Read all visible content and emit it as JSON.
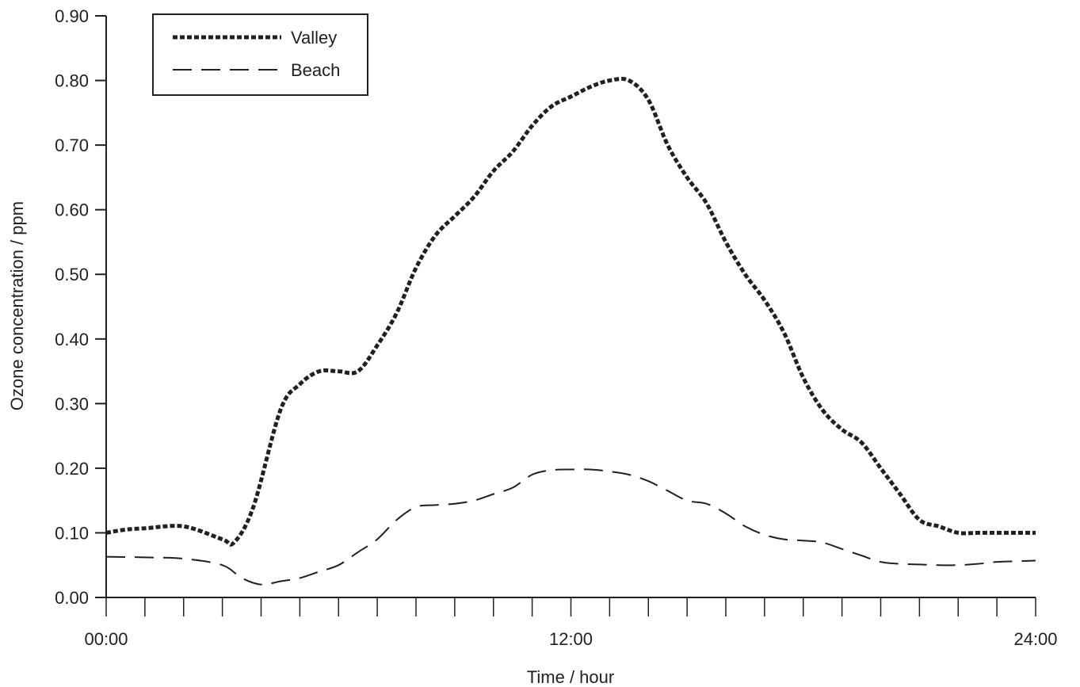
{
  "chart_data": {
    "type": "line",
    "title": "",
    "xlabel": "Time / hour",
    "ylabel": "Ozone concentration / ppm",
    "xlim": [
      0,
      24
    ],
    "ylim": [
      0,
      0.9
    ],
    "x_tick_labels": [
      "00:00",
      "12:00",
      "24:00"
    ],
    "y_tick_labels": [
      "0.00",
      "0.10",
      "0.20",
      "0.30",
      "0.40",
      "0.50",
      "0.60",
      "0.70",
      "0.80",
      "0.90"
    ],
    "grid": false,
    "legend": "top-left",
    "series": [
      {
        "name": "Valley",
        "style": "dotted-heavy",
        "color": "#231f20",
        "x": [
          0,
          0.5,
          1,
          2,
          3,
          3.3,
          3.8,
          4.5,
          5,
          5.5,
          6,
          6.5,
          7,
          7.5,
          8,
          8.5,
          9,
          9.5,
          10,
          10.5,
          11,
          11.5,
          12,
          12.5,
          13,
          13.5,
          14,
          14.5,
          15,
          15.5,
          16,
          16.5,
          17,
          17.5,
          18,
          18.5,
          19,
          19.5,
          20,
          20.5,
          21,
          21.5,
          22,
          22.5,
          23,
          23.5,
          24
        ],
        "y": [
          0.1,
          0.105,
          0.107,
          0.11,
          0.09,
          0.085,
          0.14,
          0.29,
          0.33,
          0.35,
          0.35,
          0.35,
          0.39,
          0.44,
          0.51,
          0.56,
          0.59,
          0.62,
          0.66,
          0.69,
          0.73,
          0.76,
          0.775,
          0.79,
          0.8,
          0.8,
          0.77,
          0.7,
          0.65,
          0.61,
          0.55,
          0.5,
          0.46,
          0.41,
          0.34,
          0.29,
          0.26,
          0.24,
          0.2,
          0.16,
          0.12,
          0.11,
          0.1,
          0.1,
          0.1,
          0.1,
          0.1
        ]
      },
      {
        "name": "Beach",
        "style": "long-dash",
        "color": "#231f20",
        "x": [
          0,
          1,
          2,
          3,
          3.5,
          4,
          4.5,
          5,
          5.5,
          6,
          6.5,
          7,
          7.5,
          8,
          8.5,
          9,
          9.5,
          10,
          10.5,
          11,
          11.5,
          12,
          12.5,
          13,
          13.5,
          14,
          14.5,
          15,
          15.5,
          16,
          16.5,
          17,
          17.5,
          18,
          18.5,
          19,
          19.5,
          20,
          20.5,
          21,
          21.5,
          22,
          22.5,
          23,
          23.5,
          24
        ],
        "y": [
          0.063,
          0.062,
          0.06,
          0.05,
          0.03,
          0.02,
          0.025,
          0.03,
          0.04,
          0.05,
          0.07,
          0.09,
          0.12,
          0.14,
          0.143,
          0.145,
          0.15,
          0.16,
          0.17,
          0.19,
          0.197,
          0.198,
          0.198,
          0.195,
          0.19,
          0.18,
          0.165,
          0.15,
          0.145,
          0.13,
          0.11,
          0.097,
          0.09,
          0.088,
          0.085,
          0.075,
          0.065,
          0.055,
          0.052,
          0.051,
          0.05,
          0.05,
          0.052,
          0.055,
          0.056,
          0.057
        ]
      }
    ]
  }
}
